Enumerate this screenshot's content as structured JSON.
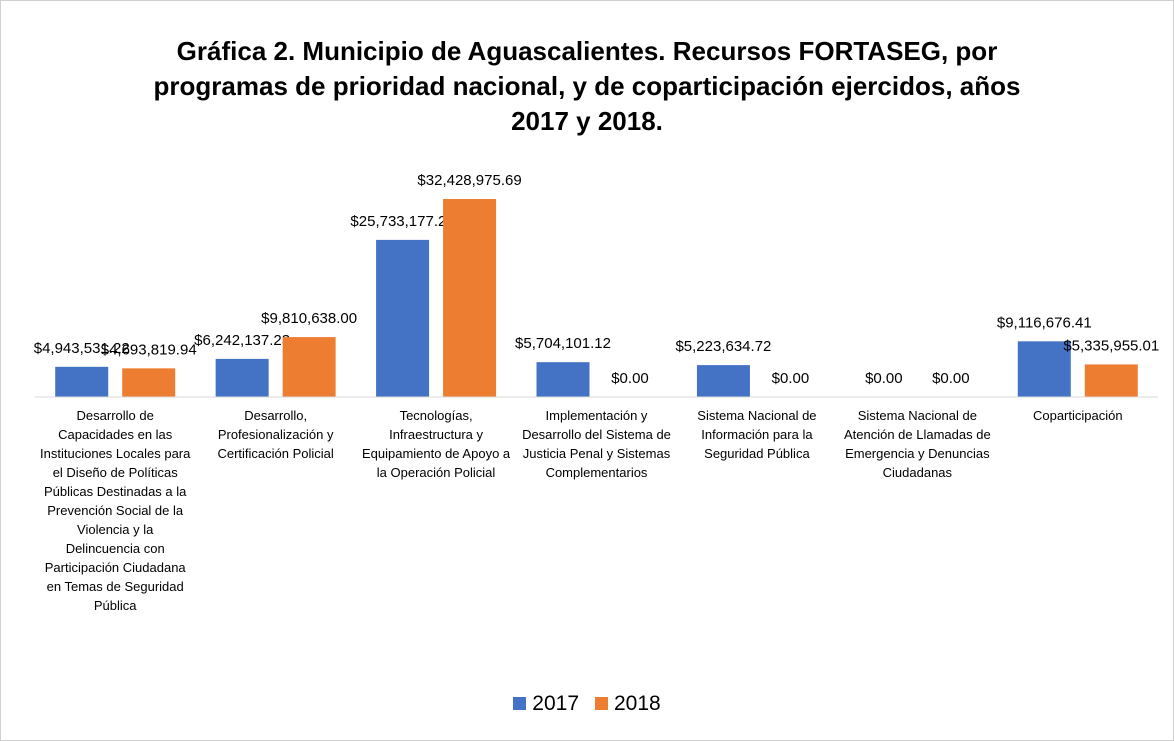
{
  "chart_data": {
    "type": "bar",
    "title": "Gráfica 2. Municipio de Aguascalientes. Recursos FORTASEG, por programas de prioridad nacional, y de coparticipación ejercidos, años 2017 y 2018.",
    "categories": [
      "Desarrollo de Capacidades en las Instituciones Locales para el Diseño de Políticas Públicas Destinadas a la Prevención Social de la Violencia y la Delincuencia con Participación Ciudadana en Temas de Seguridad Pública",
      "Desarrollo, Profesionalización y Certificación Policial",
      "Tecnologías, Infraestructura y Equipamiento de Apoyo a la Operación Policial",
      "Implementación y Desarrollo del Sistema de Justicia Penal y Sistemas Complementarios",
      "Sistema Nacional de Información para la Seguridad Pública",
      "Sistema Nacional de Atención de Llamadas de Emergencia y Denuncias Ciudadanas",
      "Coparticipación"
    ],
    "series": [
      {
        "name": "2017",
        "color": "#4472c4",
        "values": [
          4943531.22,
          6242137.23,
          25733177.24,
          5704101.12,
          5223634.72,
          0,
          9116676.41
        ],
        "value_labels": [
          "$4,943,531.22",
          "$6,242,137.23",
          "$25,733,177.24",
          "$5,704,101.12",
          "$5,223,634.72",
          "$0.00",
          "$9,116,676.41"
        ]
      },
      {
        "name": "2018",
        "color": "#ed7d31",
        "values": [
          4693819.94,
          9810638.0,
          32428975.69,
          0,
          0,
          0,
          5335955.01
        ],
        "value_labels": [
          "$4,693,819.94",
          "$9,810,638.00",
          "$32,428,975.69",
          "$0.00",
          "$0.00",
          "$0.00",
          "$5,335,955.01"
        ]
      }
    ],
    "legend": "bottom"
  }
}
